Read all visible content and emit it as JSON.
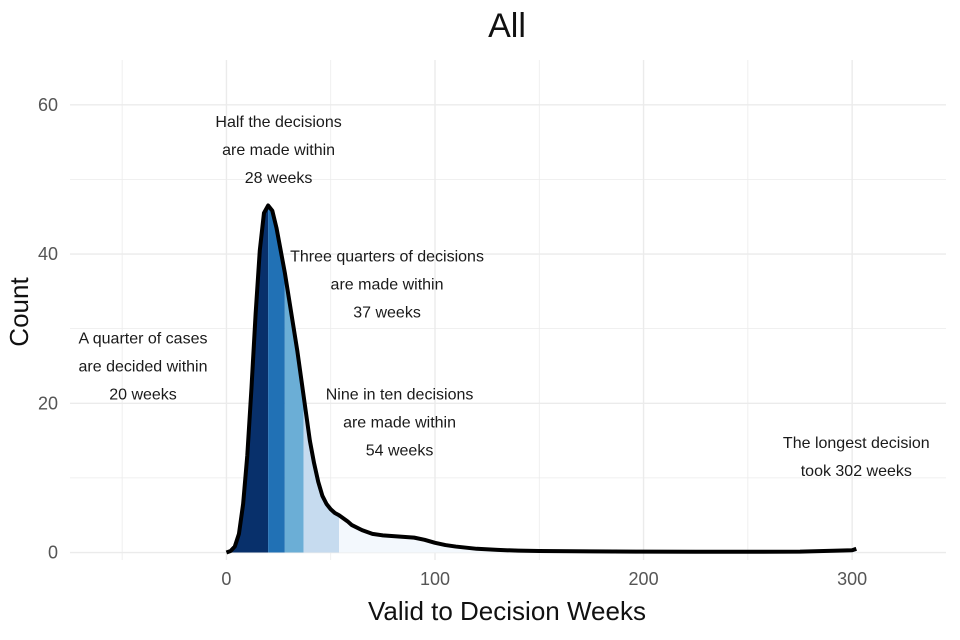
{
  "chart_data": {
    "type": "area",
    "title": "All",
    "xlabel": "Valid to Decision Weeks",
    "ylabel": "Count",
    "xlim": [
      -75,
      345
    ],
    "ylim": [
      -1,
      66
    ],
    "x_ticks": [
      0,
      100,
      200,
      300
    ],
    "y_ticks": [
      0,
      20,
      40,
      60
    ],
    "grid": true,
    "colors": {
      "band_q1": "#08306b",
      "band_q2": "#2171b5",
      "band_q3": "#6baed6",
      "band_q4": "#c6dbef",
      "band_tail": "#f3f8fd",
      "curve": "#000000",
      "grid": "#ebebeb"
    },
    "bands": [
      {
        "from": 0,
        "to": 20,
        "color_key": "band_q1"
      },
      {
        "from": 20,
        "to": 28,
        "color_key": "band_q2"
      },
      {
        "from": 28,
        "to": 37,
        "color_key": "band_q3"
      },
      {
        "from": 37,
        "to": 54,
        "color_key": "band_q4"
      },
      {
        "from": 54,
        "to": 302,
        "color_key": "band_tail"
      }
    ],
    "x": [
      0,
      2,
      4,
      6,
      8,
      10,
      12,
      14,
      16,
      18,
      20,
      22,
      24,
      26,
      28,
      30,
      32,
      34,
      36,
      38,
      40,
      42,
      44,
      46,
      48,
      50,
      52,
      54,
      56,
      58,
      60,
      65,
      70,
      75,
      80,
      85,
      90,
      95,
      100,
      105,
      110,
      120,
      130,
      140,
      150,
      175,
      200,
      225,
      250,
      275,
      300,
      302
    ],
    "y": [
      0,
      0.2,
      0.8,
      2.5,
      6.5,
      13,
      22,
      32,
      40.5,
      45.5,
      46.5,
      45.8,
      43.5,
      40.5,
      37.5,
      34,
      30.5,
      27,
      23,
      19,
      15,
      12,
      9.5,
      7.6,
      6.5,
      5.8,
      5.3,
      5,
      4.6,
      4.2,
      3.7,
      3,
      2.5,
      2.3,
      2.2,
      2.1,
      2,
      1.7,
      1.3,
      1,
      0.8,
      0.5,
      0.35,
      0.25,
      0.2,
      0.15,
      0.12,
      0.1,
      0.1,
      0.12,
      0.3,
      0.5
    ]
  },
  "annotations": [
    {
      "lines": [
        "A quarter of cases",
        "are decided within",
        "20 weeks"
      ],
      "x": -40,
      "y": 28
    },
    {
      "lines": [
        "Half the decisions",
        "are made within",
        "28 weeks"
      ],
      "x": 25,
      "y": 57
    },
    {
      "lines": [
        "Three quarters of decisions",
        "are made within",
        "37 weeks"
      ],
      "x": 77,
      "y": 39
    },
    {
      "lines": [
        "Nine in ten decisions",
        "are made within",
        "54 weeks"
      ],
      "x": 83,
      "y": 20.5
    },
    {
      "lines": [
        "The longest decision",
        "took 302 weeks"
      ],
      "x": 302,
      "y": 14
    }
  ]
}
